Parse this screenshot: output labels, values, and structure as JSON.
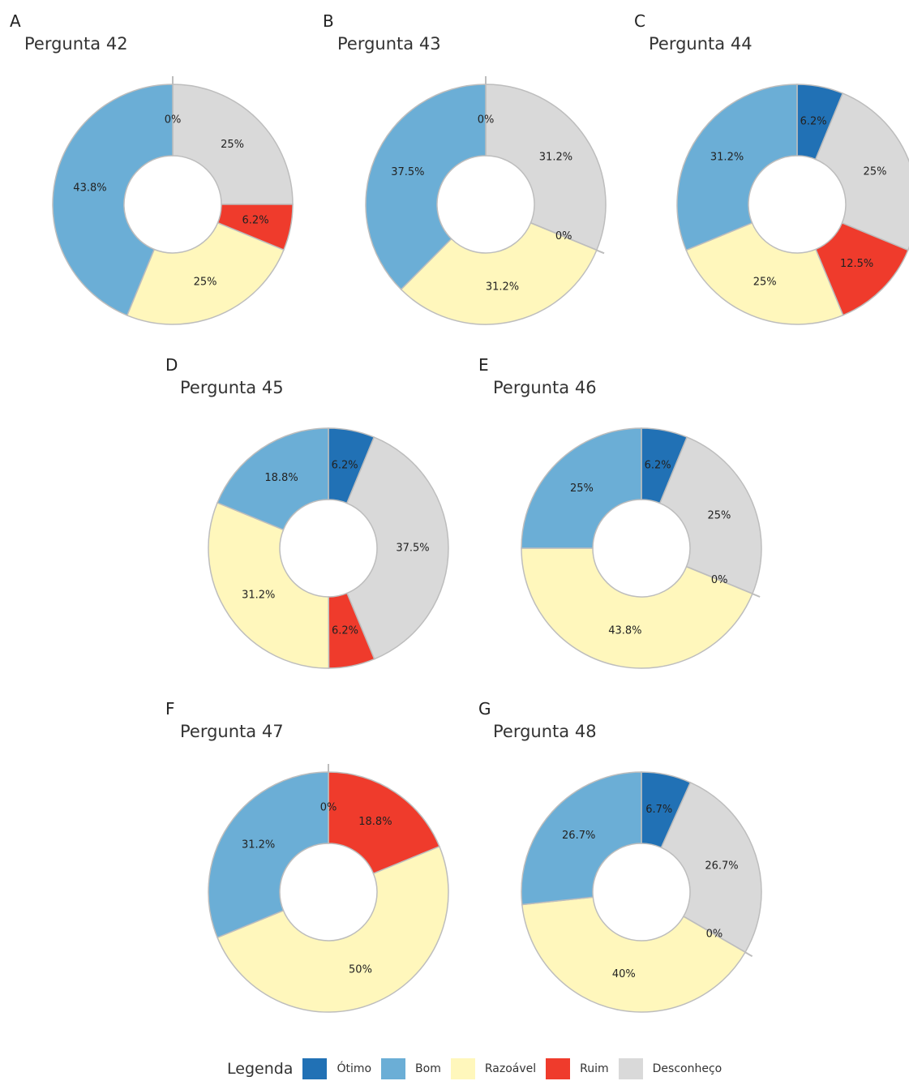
{
  "categories": [
    "Ótimo",
    "Bom",
    "Razoável",
    "Ruim",
    "Desconheço"
  ],
  "colors": {
    "Ótimo": "#2171b5",
    "Bom": "#6baed6",
    "Razoável": "#fff7bc",
    "Ruim": "#ef3b2c",
    "Desconheço": "#d9d9d9"
  },
  "legend": {
    "title": "Legenda",
    "items": [
      "Ótimo",
      "Bom",
      "Razoável",
      "Ruim",
      "Desconheço"
    ]
  },
  "chart_data": [
    {
      "type": "pie",
      "letter": "A",
      "title": "Pergunta 42",
      "slices": [
        {
          "category": "Ótimo",
          "value": 0,
          "label": "0%"
        },
        {
          "category": "Desconheço",
          "value": 25,
          "label": "25%"
        },
        {
          "category": "Ruim",
          "value": 6.2,
          "label": "6.2%"
        },
        {
          "category": "Razoável",
          "value": 25,
          "label": "25%"
        },
        {
          "category": "Bom",
          "value": 43.8,
          "label": "43.8%"
        }
      ]
    },
    {
      "type": "pie",
      "letter": "B",
      "title": "Pergunta 43",
      "slices": [
        {
          "category": "Ótimo",
          "value": 0,
          "label": "0%"
        },
        {
          "category": "Desconheço",
          "value": 31.2,
          "label": "31.2%"
        },
        {
          "category": "Ruim",
          "value": 0,
          "label": "0%"
        },
        {
          "category": "Razoável",
          "value": 31.2,
          "label": "31.2%"
        },
        {
          "category": "Bom",
          "value": 37.5,
          "label": "37.5%"
        }
      ]
    },
    {
      "type": "pie",
      "letter": "C",
      "title": "Pergunta 44",
      "slices": [
        {
          "category": "Ótimo",
          "value": 6.2,
          "label": "6.2%"
        },
        {
          "category": "Desconheço",
          "value": 25,
          "label": "25%"
        },
        {
          "category": "Ruim",
          "value": 12.5,
          "label": "12.5%"
        },
        {
          "category": "Razoável",
          "value": 25,
          "label": "25%"
        },
        {
          "category": "Bom",
          "value": 31.2,
          "label": "31.2%"
        }
      ]
    },
    {
      "type": "pie",
      "letter": "D",
      "title": "Pergunta 45",
      "slices": [
        {
          "category": "Ótimo",
          "value": 6.2,
          "label": "6.2%"
        },
        {
          "category": "Desconheço",
          "value": 37.5,
          "label": "37.5%"
        },
        {
          "category": "Ruim",
          "value": 6.2,
          "label": "6.2%"
        },
        {
          "category": "Razoável",
          "value": 31.2,
          "label": "31.2%"
        },
        {
          "category": "Bom",
          "value": 18.8,
          "label": "18.8%"
        }
      ]
    },
    {
      "type": "pie",
      "letter": "E",
      "title": "Pergunta 46",
      "slices": [
        {
          "category": "Ótimo",
          "value": 6.2,
          "label": "6.2%"
        },
        {
          "category": "Desconheço",
          "value": 25,
          "label": "25%"
        },
        {
          "category": "Ruim",
          "value": 0,
          "label": "0%"
        },
        {
          "category": "Razoável",
          "value": 43.8,
          "label": "43.8%"
        },
        {
          "category": "Bom",
          "value": 25,
          "label": "25%"
        }
      ]
    },
    {
      "type": "pie",
      "letter": "F",
      "title": "Pergunta 47",
      "slices": [
        {
          "category": "Ótimo",
          "value": 0,
          "label": "0%"
        },
        {
          "category": "Ruim",
          "value": 18.8,
          "label": "18.8%"
        },
        {
          "category": "Razoável",
          "value": 50,
          "label": "50%"
        },
        {
          "category": "Bom",
          "value": 31.2,
          "label": "31.2%"
        }
      ]
    },
    {
      "type": "pie",
      "letter": "G",
      "title": "Pergunta 48",
      "slices": [
        {
          "category": "Ótimo",
          "value": 6.7,
          "label": "6.7%"
        },
        {
          "category": "Desconheço",
          "value": 26.7,
          "label": "26.7%"
        },
        {
          "category": "Ruim",
          "value": 0,
          "label": "0%"
        },
        {
          "category": "Razoável",
          "value": 40,
          "label": "40%"
        },
        {
          "category": "Bom",
          "value": 26.7,
          "label": "26.7%"
        }
      ]
    }
  ]
}
